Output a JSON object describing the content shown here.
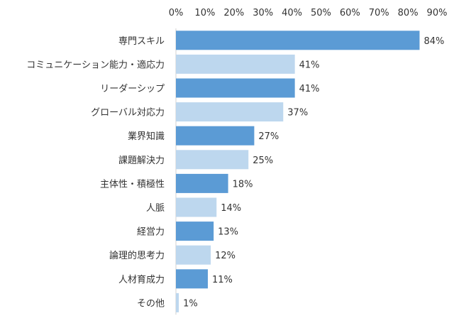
{
  "chart_data": {
    "type": "bar",
    "orientation": "horizontal",
    "categories": [
      "専門スキル",
      "コミュニケーション能力・適応力",
      "リーダーシップ",
      "グローバル対応力",
      "業界知識",
      "課題解決力",
      "主体性・積極性",
      "人脈",
      "経営力",
      "論理的思考力",
      "人材育成力",
      "その他"
    ],
    "values": [
      84,
      41,
      41,
      37,
      27,
      25,
      18,
      14,
      13,
      12,
      11,
      1
    ],
    "data_labels": [
      "84%",
      "41%",
      "41%",
      "37%",
      "27%",
      "25%",
      "18%",
      "14%",
      "13%",
      "12%",
      "11%",
      "1%"
    ],
    "x_ticks": [
      "0%",
      "10%",
      "20%",
      "30%",
      "40%",
      "50%",
      "60%",
      "70%",
      "80%",
      "90%"
    ],
    "xlim": [
      0,
      90
    ],
    "axis_position": "top",
    "grid": false,
    "legend": "none",
    "colors": {
      "dark": "#5b9bd5",
      "light": "#bdd7ee"
    },
    "bar_shades": [
      "dark",
      "light",
      "dark",
      "light",
      "dark",
      "light",
      "dark",
      "light",
      "dark",
      "light",
      "dark",
      "light"
    ]
  }
}
